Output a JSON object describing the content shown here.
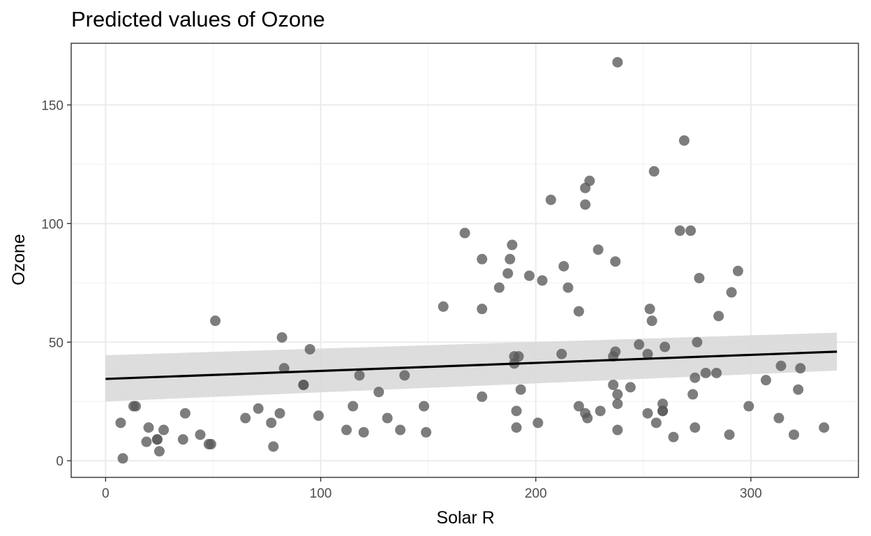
{
  "chart_data": {
    "type": "scatter",
    "title": "Predicted values of Ozone",
    "xlabel": "Solar R",
    "ylabel": "Ozone",
    "xlim": [
      -16,
      350
    ],
    "ylim": [
      -7,
      176
    ],
    "x_ticks": [
      0,
      100,
      200,
      300
    ],
    "y_ticks": [
      0,
      50,
      100,
      150
    ],
    "grid": true,
    "legend": "none",
    "colors": {
      "points": "#595959",
      "fit_line": "#000000",
      "ribbon": "#d9d9d9",
      "grid_major": "#ebebeb",
      "grid_minor": "#f3f3f3",
      "panel_border": "#333333"
    },
    "points": [
      {
        "x": 7,
        "y": 16
      },
      {
        "x": 8,
        "y": 1
      },
      {
        "x": 13,
        "y": 23
      },
      {
        "x": 14,
        "y": 23
      },
      {
        "x": 19,
        "y": 8
      },
      {
        "x": 20,
        "y": 14
      },
      {
        "x": 24,
        "y": 9
      },
      {
        "x": 24,
        "y": 9
      },
      {
        "x": 25,
        "y": 4
      },
      {
        "x": 27,
        "y": 13
      },
      {
        "x": 36,
        "y": 9
      },
      {
        "x": 37,
        "y": 20
      },
      {
        "x": 44,
        "y": 11
      },
      {
        "x": 48,
        "y": 7
      },
      {
        "x": 49,
        "y": 7
      },
      {
        "x": 51,
        "y": 59
      },
      {
        "x": 65,
        "y": 18
      },
      {
        "x": 71,
        "y": 22
      },
      {
        "x": 77,
        "y": 16
      },
      {
        "x": 78,
        "y": 6
      },
      {
        "x": 81,
        "y": 20
      },
      {
        "x": 82,
        "y": 52
      },
      {
        "x": 83,
        "y": 39
      },
      {
        "x": 92,
        "y": 32
      },
      {
        "x": 92,
        "y": 32
      },
      {
        "x": 95,
        "y": 47
      },
      {
        "x": 99,
        "y": 19
      },
      {
        "x": 112,
        "y": 13
      },
      {
        "x": 115,
        "y": 23
      },
      {
        "x": 118,
        "y": 36
      },
      {
        "x": 120,
        "y": 12
      },
      {
        "x": 127,
        "y": 29
      },
      {
        "x": 131,
        "y": 18
      },
      {
        "x": 137,
        "y": 13
      },
      {
        "x": 139,
        "y": 36
      },
      {
        "x": 148,
        "y": 23
      },
      {
        "x": 149,
        "y": 12
      },
      {
        "x": 157,
        "y": 65
      },
      {
        "x": 167,
        "y": 96
      },
      {
        "x": 175,
        "y": 85
      },
      {
        "x": 175,
        "y": 64
      },
      {
        "x": 175,
        "y": 27
      },
      {
        "x": 183,
        "y": 73
      },
      {
        "x": 187,
        "y": 79
      },
      {
        "x": 188,
        "y": 85
      },
      {
        "x": 189,
        "y": 91
      },
      {
        "x": 190,
        "y": 44
      },
      {
        "x": 190,
        "y": 41
      },
      {
        "x": 191,
        "y": 21
      },
      {
        "x": 191,
        "y": 14
      },
      {
        "x": 192,
        "y": 44
      },
      {
        "x": 193,
        "y": 30
      },
      {
        "x": 197,
        "y": 78
      },
      {
        "x": 201,
        "y": 16
      },
      {
        "x": 203,
        "y": 76
      },
      {
        "x": 207,
        "y": 110
      },
      {
        "x": 212,
        "y": 45
      },
      {
        "x": 213,
        "y": 82
      },
      {
        "x": 215,
        "y": 73
      },
      {
        "x": 220,
        "y": 63
      },
      {
        "x": 220,
        "y": 23
      },
      {
        "x": 223,
        "y": 115
      },
      {
        "x": 223,
        "y": 108
      },
      {
        "x": 223,
        "y": 20
      },
      {
        "x": 224,
        "y": 18
      },
      {
        "x": 225,
        "y": 118
      },
      {
        "x": 229,
        "y": 89
      },
      {
        "x": 230,
        "y": 21
      },
      {
        "x": 236,
        "y": 44
      },
      {
        "x": 236,
        "y": 32
      },
      {
        "x": 237,
        "y": 84
      },
      {
        "x": 237,
        "y": 46
      },
      {
        "x": 238,
        "y": 28
      },
      {
        "x": 238,
        "y": 24
      },
      {
        "x": 238,
        "y": 13
      },
      {
        "x": 238,
        "y": 168
      },
      {
        "x": 244,
        "y": 31
      },
      {
        "x": 248,
        "y": 49
      },
      {
        "x": 252,
        "y": 45
      },
      {
        "x": 252,
        "y": 20
      },
      {
        "x": 253,
        "y": 64
      },
      {
        "x": 254,
        "y": 59
      },
      {
        "x": 255,
        "y": 122
      },
      {
        "x": 256,
        "y": 16
      },
      {
        "x": 259,
        "y": 24
      },
      {
        "x": 259,
        "y": 21
      },
      {
        "x": 259,
        "y": 21
      },
      {
        "x": 260,
        "y": 48
      },
      {
        "x": 264,
        "y": 10
      },
      {
        "x": 267,
        "y": 97
      },
      {
        "x": 269,
        "y": 135
      },
      {
        "x": 272,
        "y": 97
      },
      {
        "x": 273,
        "y": 28
      },
      {
        "x": 274,
        "y": 35
      },
      {
        "x": 274,
        "y": 14
      },
      {
        "x": 275,
        "y": 50
      },
      {
        "x": 276,
        "y": 77
      },
      {
        "x": 279,
        "y": 37
      },
      {
        "x": 284,
        "y": 37
      },
      {
        "x": 285,
        "y": 61
      },
      {
        "x": 290,
        "y": 11
      },
      {
        "x": 291,
        "y": 71
      },
      {
        "x": 294,
        "y": 80
      },
      {
        "x": 299,
        "y": 23
      },
      {
        "x": 307,
        "y": 34
      },
      {
        "x": 313,
        "y": 18
      },
      {
        "x": 314,
        "y": 40
      },
      {
        "x": 320,
        "y": 11
      },
      {
        "x": 322,
        "y": 30
      },
      {
        "x": 323,
        "y": 39
      },
      {
        "x": 334,
        "y": 14
      }
    ],
    "fit": {
      "x": [
        0,
        340
      ],
      "y": [
        34.5,
        46
      ],
      "ci_lower": [
        25,
        38
      ],
      "ci_upper": [
        44.5,
        54
      ]
    }
  }
}
